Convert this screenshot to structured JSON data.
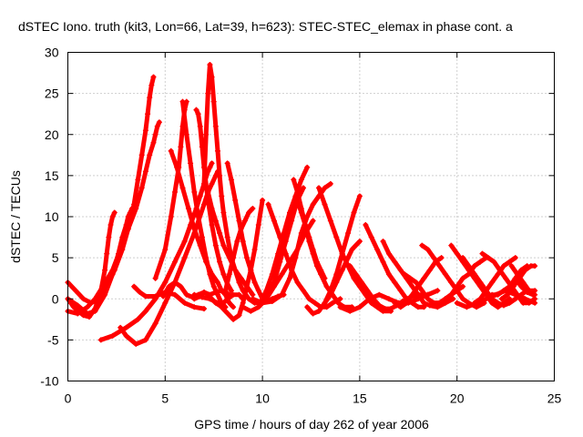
{
  "chart_data": {
    "type": "line",
    "title": "dSTEC Iono. truth (kit3, Lon=66, Lat=39, h=623): STEC-STEC_elemax in phase cont. a",
    "xlabel": "GPS time / hours of day 262 of year 2006",
    "ylabel": "dSTEC  / TECUs",
    "xlim": [
      0,
      25
    ],
    "ylim": [
      -10,
      30
    ],
    "xticks": [
      0,
      5,
      10,
      15,
      20,
      25
    ],
    "yticks": [
      -10,
      -5,
      0,
      5,
      10,
      15,
      20,
      25,
      30
    ],
    "grid": true,
    "color": "#ff0000",
    "marker": "plus",
    "series": [
      {
        "x": [
          0.0,
          0.3,
          0.8,
          1.1,
          1.4,
          1.7,
          1.9,
          2.0,
          2.1,
          2.2,
          2.3,
          2.4
        ],
        "y": [
          0.0,
          -1.0,
          -2.0,
          -2.2,
          -1.2,
          1.0,
          3.5,
          5.5,
          7.5,
          9.0,
          10.0,
          10.5
        ]
      },
      {
        "x": [
          0.0,
          0.5,
          1.0,
          1.4,
          1.9,
          2.3,
          2.6,
          2.8,
          3.0,
          3.1,
          3.2,
          3.3
        ],
        "y": [
          0.0,
          -0.8,
          -1.8,
          -1.5,
          0.5,
          3.0,
          5.5,
          7.5,
          9.0,
          10.0,
          10.5,
          11.0
        ]
      },
      {
        "x": [
          0.0,
          0.4,
          0.8,
          1.2,
          1.6,
          2.0,
          2.4,
          2.8,
          3.1,
          3.4,
          3.6,
          3.8,
          4.0,
          4.1,
          4.2,
          4.3,
          4.4
        ],
        "y": [
          2.0,
          1.0,
          0.0,
          -0.5,
          0.0,
          1.5,
          3.5,
          6.0,
          8.5,
          11.5,
          14.5,
          17.5,
          20.5,
          22.5,
          24.5,
          26.0,
          27.0
        ]
      },
      {
        "x": [
          0.0,
          0.5,
          1.0,
          1.4,
          1.8,
          2.3,
          2.7,
          3.1,
          3.5,
          3.8,
          4.0,
          4.2,
          4.4,
          4.5,
          4.6,
          4.7
        ],
        "y": [
          -1.5,
          -1.8,
          -1.0,
          0.0,
          1.5,
          3.5,
          6.0,
          8.5,
          11.0,
          13.5,
          15.5,
          17.5,
          19.0,
          20.0,
          21.0,
          21.5
        ]
      },
      {
        "x": [
          1.7,
          2.3,
          3.0,
          3.6,
          4.0,
          4.5,
          5.0,
          5.5,
          6.0,
          6.3,
          6.6,
          6.8,
          7.0,
          7.2,
          7.3,
          7.4
        ],
        "y": [
          -5.0,
          -4.5,
          -3.5,
          -2.5,
          -1.5,
          0.0,
          2.0,
          4.5,
          7.0,
          9.0,
          11.0,
          12.5,
          14.0,
          15.5,
          16.0,
          16.5
        ]
      },
      {
        "x": [
          2.7,
          3.0,
          3.5,
          4.0,
          4.5,
          5.0,
          5.5,
          6.0,
          6.5,
          7.0,
          7.2,
          7.4,
          7.6,
          7.7
        ],
        "y": [
          -3.5,
          -4.5,
          -5.5,
          -5.0,
          -3.0,
          -0.5,
          2.0,
          5.0,
          8.0,
          11.5,
          13.0,
          14.0,
          15.0,
          15.5
        ]
      },
      {
        "x": [
          3.4,
          3.7,
          4.0,
          4.5,
          5.0,
          5.5,
          6.0,
          6.5,
          7.0
        ],
        "y": [
          1.5,
          0.8,
          0.3,
          0.3,
          0.8,
          0.5,
          -0.5,
          -1.0,
          -1.2
        ]
      },
      {
        "x": [
          4.5,
          5.0,
          5.3,
          5.5,
          5.7,
          5.8,
          5.9,
          6.0,
          6.1
        ],
        "y": [
          2.5,
          6.0,
          10.0,
          13.0,
          16.0,
          18.5,
          21.0,
          23.0,
          24.0
        ]
      },
      {
        "x": [
          4.9,
          5.2,
          5.5,
          5.8,
          6.1,
          6.4,
          6.7,
          7.0,
          7.3,
          7.6,
          7.9,
          8.1,
          8.3
        ],
        "y": [
          0.3,
          1.5,
          2.0,
          1.5,
          0.5,
          0.2,
          0.5,
          0.8,
          0.5,
          0.8,
          1.0,
          0.8,
          0.5
        ]
      },
      {
        "x": [
          5.3,
          5.6,
          5.9,
          6.2,
          6.5,
          6.8,
          7.1,
          7.4,
          7.7,
          7.9,
          8.1,
          8.3,
          8.5
        ],
        "y": [
          18.0,
          16.0,
          13.5,
          11.0,
          8.5,
          6.5,
          4.5,
          3.0,
          2.0,
          1.0,
          0.5,
          -0.5,
          -1.0
        ]
      },
      {
        "x": [
          5.9,
          6.1,
          6.3,
          6.5,
          6.7,
          6.9,
          7.1,
          7.3,
          7.5,
          7.7,
          7.9,
          8.1
        ],
        "y": [
          24.0,
          20.0,
          16.5,
          13.0,
          10.0,
          7.5,
          5.0,
          3.0,
          1.5,
          0.5,
          -0.5,
          -1.0
        ]
      },
      {
        "x": [
          6.5,
          6.8,
          7.0,
          7.2,
          7.4,
          7.6,
          7.8,
          8.0,
          8.2,
          8.5,
          8.8,
          9.0
        ],
        "y": [
          0.0,
          0.3,
          0.8,
          0.5,
          0.0,
          -0.5,
          -0.8,
          -0.5,
          0.0,
          0.5,
          0.5,
          0.0
        ]
      },
      {
        "x": [
          6.6,
          6.7,
          6.8,
          6.9,
          7.0,
          7.2,
          7.4,
          7.6,
          7.8,
          8.0,
          8.2,
          8.4
        ],
        "y": [
          23.0,
          22.5,
          21.0,
          18.5,
          16.0,
          12.0,
          9.0,
          6.5,
          4.5,
          3.0,
          1.8,
          1.0
        ]
      },
      {
        "x": [
          7.0,
          7.1,
          7.2,
          7.3,
          7.4,
          7.5,
          7.6,
          7.7,
          7.8,
          7.9,
          8.0,
          8.2,
          8.4,
          8.6,
          8.8,
          9.0,
          9.3,
          9.6,
          9.9,
          10.2,
          10.5,
          10.8,
          11.1
        ],
        "y": [
          14.0,
          20.0,
          25.0,
          28.5,
          27.0,
          24.0,
          21.0,
          18.0,
          15.0,
          12.5,
          10.5,
          7.5,
          5.0,
          3.5,
          2.0,
          1.0,
          0.0,
          -0.5,
          -0.5,
          -0.3,
          0.0,
          0.3,
          0.5
        ]
      },
      {
        "x": [
          7.2,
          7.4,
          7.6,
          7.8,
          8.0,
          8.3,
          8.6,
          8.9,
          9.2,
          9.5
        ],
        "y": [
          13.0,
          11.0,
          9.5,
          8.0,
          6.5,
          5.0,
          3.5,
          2.5,
          1.5,
          0.5
        ]
      },
      {
        "x": [
          6.5,
          6.9,
          7.3,
          7.7,
          8.1,
          8.5,
          8.8,
          9.0,
          9.2,
          9.4,
          9.6,
          9.8,
          10.0
        ],
        "y": [
          0.5,
          0.2,
          0.0,
          -0.5,
          -1.5,
          -2.5,
          -2.0,
          -0.5,
          1.5,
          3.5,
          6.0,
          9.0,
          12.0
        ]
      },
      {
        "x": [
          8.1,
          8.3,
          8.5,
          8.7,
          8.9,
          9.1,
          9.3,
          9.5
        ],
        "y": [
          1.0,
          3.0,
          5.0,
          7.0,
          8.5,
          9.5,
          10.5,
          11.0
        ]
      },
      {
        "x": [
          8.2,
          8.4,
          8.6,
          8.8,
          9.0,
          9.2,
          9.4,
          9.6,
          9.8,
          10.0
        ],
        "y": [
          16.5,
          14.5,
          12.0,
          9.5,
          7.0,
          5.0,
          3.5,
          2.0,
          1.0,
          0.0
        ]
      },
      {
        "x": [
          9.0,
          9.4,
          9.8,
          10.2,
          10.6,
          11.0,
          11.4,
          11.8,
          12.2,
          12.6
        ],
        "y": [
          -1.0,
          -1.5,
          -1.0,
          0.0,
          1.5,
          3.0,
          4.5,
          6.0,
          8.0,
          9.5
        ]
      },
      {
        "x": [
          9.5,
          10.0,
          10.5,
          11.0,
          11.4,
          11.7,
          12.0,
          12.3,
          12.6,
          12.9,
          13.2,
          13.5
        ],
        "y": [
          0.0,
          -0.5,
          -0.3,
          0.5,
          2.5,
          5.0,
          8.0,
          10.0,
          11.5,
          12.5,
          13.5,
          14.0
        ]
      },
      {
        "x": [
          9.9,
          10.2,
          10.5,
          10.8,
          11.1,
          11.4,
          11.7,
          12.0,
          12.3
        ],
        "y": [
          -0.5,
          1.0,
          3.0,
          5.5,
          8.0,
          10.5,
          12.5,
          14.5,
          16.0
        ]
      },
      {
        "x": [
          10.0,
          10.3,
          10.6,
          10.9,
          11.2,
          11.5,
          11.8,
          12.1
        ],
        "y": [
          -0.5,
          0.5,
          2.0,
          4.5,
          7.0,
          9.5,
          12.0,
          13.5
        ]
      },
      {
        "x": [
          10.3,
          10.6,
          10.9,
          11.2,
          11.5,
          11.8,
          12.1,
          12.4,
          12.7,
          13.0,
          13.3,
          13.6,
          14.0
        ],
        "y": [
          11.5,
          9.5,
          7.5,
          5.5,
          3.5,
          2.0,
          1.0,
          0.0,
          -0.5,
          -1.0,
          -1.0,
          -0.5,
          0.0
        ]
      },
      {
        "x": [
          11.6,
          11.8,
          12.0,
          12.2,
          12.4,
          12.6,
          12.8,
          13.0,
          13.3,
          13.6,
          13.9,
          14.2,
          14.6
        ],
        "y": [
          14.5,
          13.0,
          11.0,
          9.0,
          7.0,
          5.5,
          4.0,
          3.0,
          1.5,
          0.5,
          -0.5,
          -1.0,
          -1.0
        ]
      },
      {
        "x": [
          11.8,
          12.0,
          12.2,
          12.4,
          12.6,
          12.8,
          13.0,
          13.2
        ],
        "y": [
          12.0,
          10.5,
          9.0,
          7.5,
          6.0,
          4.5,
          3.5,
          2.5
        ]
      },
      {
        "x": [
          12.3,
          12.6,
          12.9,
          13.2,
          13.5,
          13.8,
          14.1,
          14.4,
          14.7,
          15.0
        ],
        "y": [
          -1.0,
          -1.8,
          -1.5,
          -0.5,
          1.0,
          3.0,
          5.5,
          8.0,
          10.5,
          12.5
        ]
      },
      {
        "x": [
          12.9,
          13.2,
          13.5,
          13.8,
          14.1,
          14.4,
          14.7,
          15.0,
          15.3,
          15.6,
          15.9,
          16.2,
          16.6
        ],
        "y": [
          13.5,
          11.5,
          9.5,
          7.5,
          5.5,
          4.0,
          2.5,
          1.5,
          0.5,
          -0.5,
          -1.0,
          -1.5,
          -1.5
        ]
      },
      {
        "x": [
          13.2,
          13.5,
          13.8,
          14.1,
          14.4,
          14.6,
          14.8,
          15.0
        ],
        "y": [
          -0.5,
          0.5,
          2.0,
          3.5,
          5.0,
          6.0,
          6.5,
          7.0
        ]
      },
      {
        "x": [
          14.0,
          14.5,
          15.0,
          15.5,
          16.0,
          16.5,
          17.0,
          17.5,
          18.0,
          18.5,
          19.0
        ],
        "y": [
          -1.0,
          -1.5,
          -1.0,
          0.0,
          0.5,
          0.0,
          -0.5,
          -0.5,
          0.0,
          0.5,
          1.0
        ]
      },
      {
        "x": [
          14.5,
          14.8,
          15.1,
          15.4,
          15.7,
          16.0,
          16.3,
          16.6,
          16.9,
          17.2,
          17.6,
          18.0,
          18.5
        ],
        "y": [
          4.0,
          3.0,
          2.0,
          1.0,
          0.0,
          -0.8,
          -1.2,
          -1.2,
          -0.8,
          -0.3,
          0.2,
          0.5,
          0.5
        ]
      },
      {
        "x": [
          15.3,
          15.6,
          15.9,
          16.2,
          16.5,
          16.8,
          17.1,
          17.4,
          17.7,
          18.0,
          18.3
        ],
        "y": [
          9.0,
          7.5,
          6.0,
          4.5,
          3.0,
          2.0,
          1.0,
          0.0,
          -0.5,
          -1.0,
          -1.0
        ]
      },
      {
        "x": [
          16.2,
          16.5,
          16.8,
          17.1,
          17.4,
          17.7,
          18.0,
          18.3,
          18.6,
          19.0,
          19.4,
          19.8
        ],
        "y": [
          7.0,
          5.5,
          4.5,
          3.5,
          2.5,
          1.5,
          0.5,
          -0.5,
          -0.8,
          -1.0,
          -0.5,
          0.0
        ]
      },
      {
        "x": [
          16.8,
          17.1,
          17.4,
          17.7,
          18.0,
          18.3,
          18.6,
          18.9,
          19.2
        ],
        "y": [
          -0.5,
          -1.0,
          -0.5,
          0.5,
          1.5,
          2.5,
          3.5,
          4.5,
          5.0
        ]
      },
      {
        "x": [
          17.3,
          17.6,
          17.9,
          18.2,
          18.5,
          18.8,
          19.1,
          19.4,
          19.7,
          20.0,
          20.3
        ],
        "y": [
          3.0,
          2.5,
          2.0,
          1.0,
          0.0,
          -0.5,
          -0.5,
          0.0,
          0.5,
          1.0,
          1.5
        ]
      },
      {
        "x": [
          18.2,
          18.5,
          18.8,
          19.1,
          19.4,
          19.7,
          20.0,
          20.3,
          20.6,
          21.0,
          21.4
        ],
        "y": [
          6.5,
          6.0,
          5.0,
          4.0,
          3.0,
          2.0,
          1.0,
          0.0,
          -0.5,
          -1.0,
          -0.5
        ]
      },
      {
        "x": [
          18.8,
          19.1,
          19.4,
          19.7,
          20.0,
          20.3,
          20.6,
          20.9,
          21.2,
          21.5
        ],
        "y": [
          -0.5,
          -0.5,
          0.0,
          0.5,
          1.5,
          2.5,
          3.0,
          4.0,
          4.5,
          5.0
        ]
      },
      {
        "x": [
          19.7,
          20.0,
          20.3,
          20.6,
          20.9,
          21.2,
          21.5,
          21.8,
          22.1,
          22.4,
          22.7
        ],
        "y": [
          6.5,
          5.5,
          4.5,
          3.5,
          2.5,
          1.5,
          0.5,
          -0.5,
          -1.0,
          -0.5,
          0.0
        ]
      },
      {
        "x": [
          20.0,
          20.5,
          21.0,
          21.5,
          22.0,
          22.5,
          23.0,
          23.5,
          24.0
        ],
        "y": [
          -0.5,
          -1.0,
          -0.5,
          0.0,
          0.5,
          1.0,
          0.5,
          0.0,
          -0.5
        ]
      },
      {
        "x": [
          20.3,
          20.6,
          20.9,
          21.2,
          21.5,
          21.8,
          22.1,
          22.4,
          22.7,
          23.0,
          23.3,
          23.6,
          24.0
        ],
        "y": [
          5.0,
          4.0,
          3.0,
          2.0,
          1.0,
          0.0,
          -0.5,
          -0.8,
          -0.5,
          0.0,
          0.5,
          1.0,
          1.0
        ]
      },
      {
        "x": [
          20.9,
          21.2,
          21.5,
          21.8,
          22.1,
          22.4,
          22.7,
          23.0
        ],
        "y": [
          -0.5,
          0.0,
          1.0,
          2.0,
          3.0,
          4.0,
          4.5,
          5.0
        ]
      },
      {
        "x": [
          21.3,
          21.6,
          21.9,
          22.2,
          22.5,
          22.8,
          23.1,
          23.4,
          23.7,
          24.0
        ],
        "y": [
          5.5,
          5.0,
          4.5,
          3.5,
          2.5,
          1.5,
          0.5,
          -0.5,
          -0.5,
          0.0
        ]
      },
      {
        "x": [
          21.8,
          22.1,
          22.4,
          22.7,
          23.0,
          23.3,
          23.6
        ],
        "y": [
          0.5,
          0.5,
          1.0,
          1.5,
          2.5,
          3.5,
          4.0
        ]
      },
      {
        "x": [
          22.3,
          22.6,
          22.9,
          23.2,
          23.5,
          23.8,
          24.0
        ],
        "y": [
          0.0,
          0.5,
          1.5,
          2.5,
          3.5,
          4.0,
          4.0
        ]
      },
      {
        "x": [
          22.8,
          23.1,
          23.4,
          23.7,
          24.0
        ],
        "y": [
          4.0,
          3.0,
          2.0,
          1.0,
          0.5
        ]
      },
      {
        "x": [
          23.0,
          23.3,
          23.6,
          23.9
        ],
        "y": [
          2.5,
          1.5,
          0.8,
          0.5
        ]
      }
    ]
  }
}
